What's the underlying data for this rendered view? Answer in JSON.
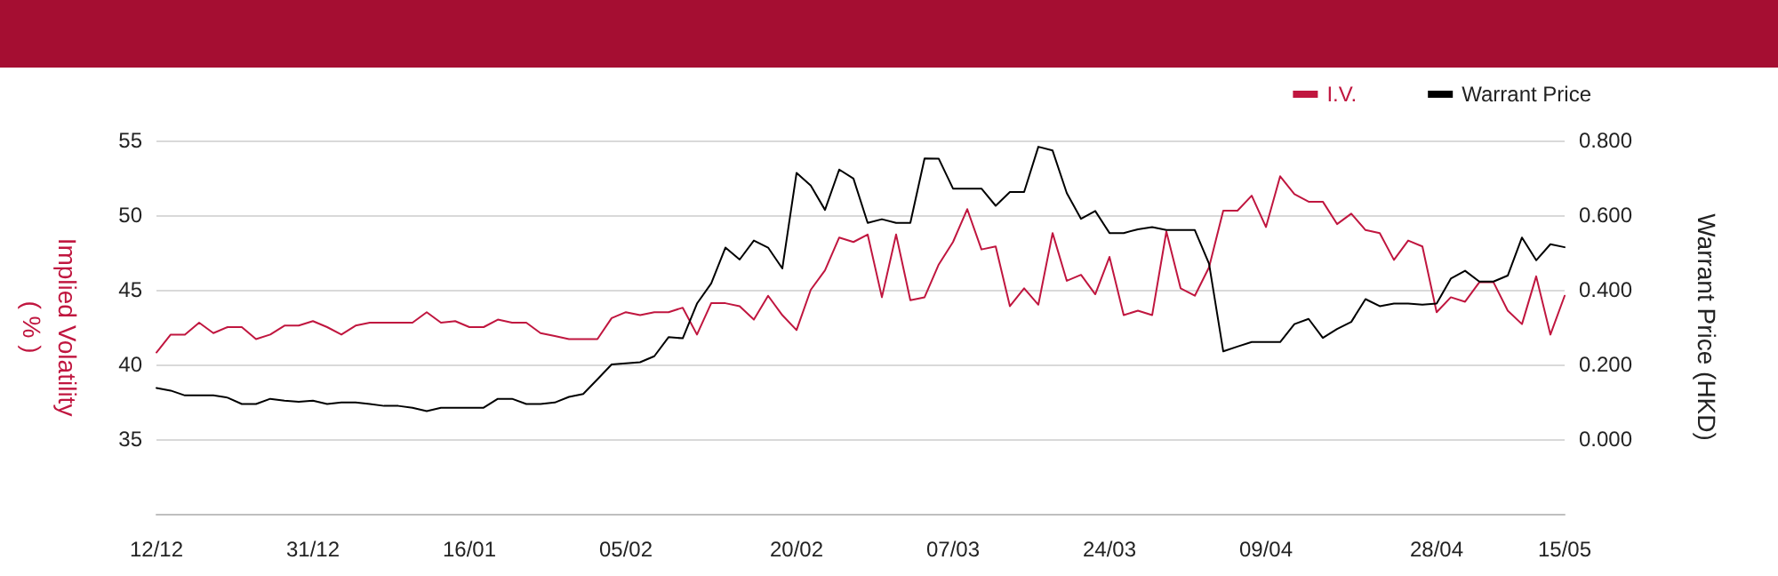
{
  "chart_data": {
    "type": "line",
    "ylabel": "Implied Volatility\n( % )",
    "y2label": "Warrant Price (HKD)",
    "categories": [
      "12/12",
      null,
      null,
      null,
      null,
      null,
      null,
      null,
      null,
      null,
      null,
      "31/12",
      null,
      null,
      null,
      null,
      null,
      null,
      null,
      null,
      null,
      null,
      "16/01",
      null,
      null,
      null,
      null,
      null,
      null,
      null,
      null,
      null,
      null,
      "05/02",
      null,
      null,
      null,
      null,
      null,
      null,
      null,
      null,
      null,
      null,
      null,
      "20/02",
      null,
      null,
      null,
      null,
      null,
      null,
      null,
      null,
      null,
      null,
      "07/03",
      null,
      null,
      null,
      null,
      null,
      null,
      null,
      null,
      null,
      null,
      "24/03",
      null,
      null,
      null,
      null,
      null,
      null,
      null,
      null,
      null,
      null,
      "09/04",
      null,
      null,
      null,
      null,
      null,
      null,
      null,
      null,
      null,
      null,
      null,
      "28/04",
      null,
      null,
      null,
      null,
      null,
      null,
      null,
      null,
      "15/05"
    ],
    "series": [
      {
        "name": "I.V.",
        "color": "#c0163f",
        "values": [
          40.8,
          42.0,
          42.0,
          42.8,
          42.1,
          42.5,
          42.5,
          41.7,
          42.0,
          42.6,
          42.6,
          42.9,
          42.5,
          42.0,
          42.6,
          42.8,
          42.8,
          42.8,
          42.8,
          43.5,
          42.8,
          42.9,
          42.5,
          42.5,
          43.0,
          42.8,
          42.8,
          42.1,
          41.9,
          41.7,
          41.7,
          41.7,
          43.1,
          43.5,
          43.3,
          43.5,
          43.5,
          43.8,
          42.0,
          44.1,
          44.1,
          43.9,
          43.0,
          44.6,
          43.3,
          42.3,
          45.0,
          46.3,
          48.5,
          48.2,
          48.7,
          44.5,
          48.7,
          44.3,
          44.5,
          46.7,
          48.2,
          50.4,
          47.7,
          47.9,
          43.9,
          45.1,
          44.0,
          48.8,
          45.6,
          46.0,
          44.7,
          47.2,
          43.3,
          43.6,
          43.3,
          48.9,
          45.1,
          44.6,
          46.5,
          50.3,
          50.3,
          51.3,
          49.2,
          52.6,
          51.4,
          50.9,
          50.9,
          49.4,
          50.1,
          49.0,
          48.8,
          47.0,
          48.3,
          47.9,
          43.5,
          44.5,
          44.2,
          45.5,
          45.5,
          43.6,
          42.7,
          45.9,
          42.0,
          44.6
        ]
      },
      {
        "name": "Warrant Price",
        "color": "#000000",
        "axis": "y2",
        "values": [
          0.137,
          0.13,
          0.117,
          0.117,
          0.117,
          0.111,
          0.094,
          0.094,
          0.108,
          0.103,
          0.1,
          0.103,
          0.094,
          0.098,
          0.098,
          0.094,
          0.089,
          0.089,
          0.084,
          0.075,
          0.084,
          0.084,
          0.084,
          0.084,
          0.108,
          0.108,
          0.094,
          0.094,
          0.098,
          0.113,
          0.121,
          0.16,
          0.2,
          0.203,
          0.206,
          0.222,
          0.273,
          0.27,
          0.363,
          0.417,
          0.513,
          0.481,
          0.532,
          0.513,
          0.457,
          0.713,
          0.679,
          0.614,
          0.722,
          0.698,
          0.579,
          0.589,
          0.579,
          0.579,
          0.752,
          0.751,
          0.671,
          0.671,
          0.671,
          0.625,
          0.662,
          0.662,
          0.783,
          0.773,
          0.659,
          0.59,
          0.611,
          0.552,
          0.552,
          0.562,
          0.568,
          0.56,
          0.56,
          0.56,
          0.47,
          0.235,
          0.248,
          0.26,
          0.26,
          0.26,
          0.308,
          0.322,
          0.271,
          0.295,
          0.314,
          0.375,
          0.356,
          0.363,
          0.363,
          0.36,
          0.363,
          0.43,
          0.451,
          0.422,
          0.422,
          0.438,
          0.54,
          0.479,
          0.522,
          0.514
        ]
      }
    ],
    "ylim": [
      30,
      55
    ],
    "yticks": [
      35,
      40,
      45,
      50,
      55
    ],
    "y2lim": [
      -0.2,
      0.8
    ],
    "y2ticks": [
      {
        "value": 0,
        "label": "0.000"
      },
      {
        "value": 0.2,
        "label": "0.200"
      },
      {
        "value": 0.4,
        "label": "0.400"
      },
      {
        "value": 0.6,
        "label": "0.600"
      },
      {
        "value": 0.8,
        "label": "0.800"
      }
    ],
    "grid": "y",
    "legend": "top right",
    "marker": "none",
    "line_style": "solid"
  }
}
